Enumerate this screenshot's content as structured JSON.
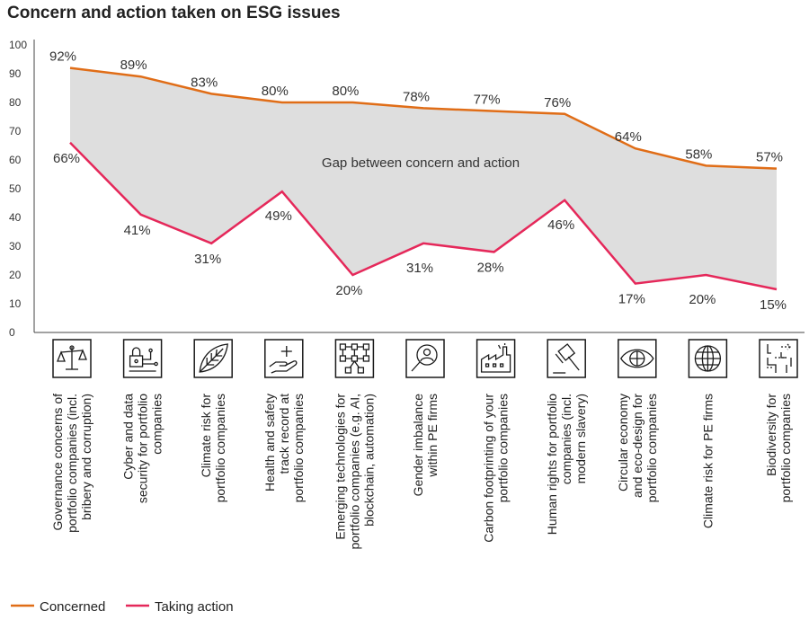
{
  "chart_data": {
    "type": "area",
    "title": "Concern and action taken on ESG issues",
    "annotation": "Gap between concern and action",
    "ylim": [
      0,
      100
    ],
    "yticks": [
      0,
      10,
      20,
      30,
      40,
      50,
      60,
      70,
      80,
      90,
      100
    ],
    "categories": [
      [
        "Governance concerns of",
        "portfolio companies (incl.",
        "bribery and corruption)"
      ],
      [
        "Cyber and data",
        "security for portfolio",
        "companies"
      ],
      [
        "Climate risk for",
        "portfolio companies"
      ],
      [
        "Health and safety",
        "track record at",
        "portfolio companies"
      ],
      [
        "Emerging technologies for",
        "portfolio companies (e.g. AI,",
        "blockchain, automation)"
      ],
      [
        "Gender imbalance",
        "within PE firms"
      ],
      [
        "Carbon footprinting of your",
        "portfolio companies"
      ],
      [
        "Human rights for portfolio",
        "companies (incl.",
        "modern slavery)"
      ],
      [
        "Circular economy",
        "and eco-design for",
        "portfolio companies"
      ],
      [
        "Climate risk for PE firms"
      ],
      [
        "Biodiversity for",
        "portfolio companies"
      ]
    ],
    "icons": [
      "scales-icon",
      "lock-circuit-icon",
      "leaf-icon",
      "hand-plus-icon",
      "network-icon",
      "person-search-icon",
      "factory-icon",
      "gavel-icon",
      "eye-icon",
      "globe-icon",
      "map-route-icon"
    ],
    "series": [
      {
        "name": "Concerned",
        "color": "#e06d17",
        "values": [
          92,
          89,
          83,
          80,
          80,
          78,
          77,
          76,
          64,
          58,
          57
        ],
        "labels": [
          "92%",
          "89%",
          "83%",
          "80%",
          "80%",
          "78%",
          "77%",
          "76%",
          "64%",
          "58%",
          "57%"
        ]
      },
      {
        "name": "Taking action",
        "color": "#e5285a",
        "values": [
          66,
          41,
          31,
          49,
          20,
          31,
          28,
          46,
          17,
          20,
          15
        ],
        "labels": [
          "66%",
          "41%",
          "31%",
          "49%",
          "20%",
          "31%",
          "28%",
          "46%",
          "17%",
          "20%",
          "15%"
        ]
      }
    ],
    "fill_color": "#dedede",
    "legend_position": "bottom-left"
  }
}
